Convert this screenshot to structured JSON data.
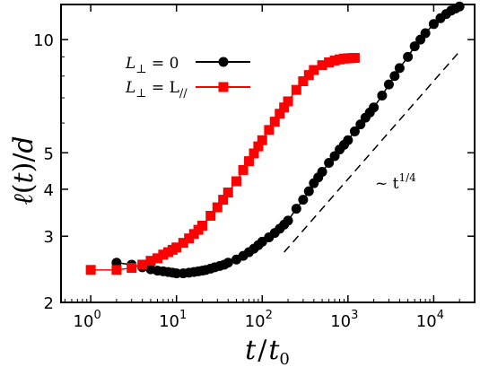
{
  "chart_data": {
    "type": "line",
    "xlabel": "t/t₀",
    "ylabel": "ℓ(t)/d",
    "xscale": "log",
    "yscale": "log",
    "xlim": [
      0.45,
      30000
    ],
    "ylim": [
      2,
      12.4
    ],
    "xticks": [
      {
        "value": 1,
        "base": "10",
        "exp": "0"
      },
      {
        "value": 10,
        "base": "10",
        "exp": "1"
      },
      {
        "value": 100,
        "base": "10",
        "exp": "2"
      },
      {
        "value": 1000,
        "base": "10",
        "exp": "3"
      },
      {
        "value": 10000,
        "base": "10",
        "exp": "4"
      }
    ],
    "yticks": [
      {
        "value": 2,
        "label": "2"
      },
      {
        "value": 3,
        "label": "3"
      },
      {
        "value": 4,
        "label": "4"
      },
      {
        "value": 5,
        "label": "5"
      },
      {
        "value": 10,
        "label": "10"
      }
    ],
    "legend_position": "top-left",
    "grid": false,
    "series": [
      {
        "name": "L⊥ = 0",
        "label_main": "L",
        "label_sub": "⊥",
        "label_rest": " = 0",
        "color": "#000000",
        "marker": "circle",
        "x": [
          2,
          3,
          4,
          5,
          6,
          7,
          8,
          9,
          10,
          12,
          14,
          16,
          18,
          20,
          22,
          25,
          28,
          32,
          36,
          40,
          50,
          60,
          70,
          80,
          90,
          100,
          120,
          140,
          160,
          180,
          200,
          250,
          300,
          350,
          400,
          450,
          500,
          600,
          700,
          800,
          900,
          1000,
          1200,
          1400,
          1600,
          1800,
          2000,
          2500,
          3000,
          3500,
          4000,
          5000,
          6000,
          7000,
          8000,
          10000,
          12000,
          14000,
          16000,
          18000,
          20000
        ],
        "y": [
          2.55,
          2.52,
          2.48,
          2.45,
          2.43,
          2.42,
          2.41,
          2.4,
          2.39,
          2.39,
          2.4,
          2.41,
          2.42,
          2.43,
          2.44,
          2.46,
          2.48,
          2.5,
          2.52,
          2.55,
          2.6,
          2.66,
          2.72,
          2.78,
          2.84,
          2.9,
          2.98,
          3.06,
          3.14,
          3.22,
          3.3,
          3.55,
          3.75,
          3.95,
          4.15,
          4.3,
          4.45,
          4.7,
          4.9,
          5.1,
          5.25,
          5.4,
          5.7,
          5.95,
          6.2,
          6.4,
          6.6,
          7.1,
          7.6,
          8.0,
          8.4,
          9.0,
          9.6,
          10.0,
          10.4,
          11.0,
          11.4,
          11.7,
          11.95,
          12.1,
          12.25
        ]
      },
      {
        "name": "L⊥ = L//",
        "label_main": "L",
        "label_sub": "⊥",
        "label_rest": " = L",
        "label_sub2": "//",
        "color": "#ff0000",
        "marker": "square",
        "x": [
          1,
          2,
          3,
          4,
          5,
          6,
          7,
          8,
          9,
          10,
          12,
          14,
          16,
          18,
          20,
          25,
          30,
          35,
          40,
          50,
          60,
          70,
          80,
          90,
          100,
          120,
          140,
          160,
          180,
          200,
          250,
          300,
          350,
          400,
          500,
          600,
          700,
          800,
          900,
          1000,
          1100,
          1200
        ],
        "y": [
          2.44,
          2.44,
          2.47,
          2.52,
          2.58,
          2.62,
          2.68,
          2.72,
          2.76,
          2.8,
          2.88,
          2.96,
          3.04,
          3.12,
          3.2,
          3.4,
          3.58,
          3.75,
          3.92,
          4.2,
          4.5,
          4.75,
          4.98,
          5.2,
          5.4,
          5.75,
          6.05,
          6.35,
          6.6,
          6.85,
          7.35,
          7.75,
          8.05,
          8.3,
          8.55,
          8.7,
          8.8,
          8.86,
          8.9,
          8.92,
          8.93,
          8.94
        ]
      }
    ],
    "guide_line": {
      "x": [
        180,
        20000
      ],
      "y": [
        2.72,
        9.3
      ],
      "style": "dashed",
      "label_prefix": "~ t",
      "label_exp": "1/4"
    }
  }
}
